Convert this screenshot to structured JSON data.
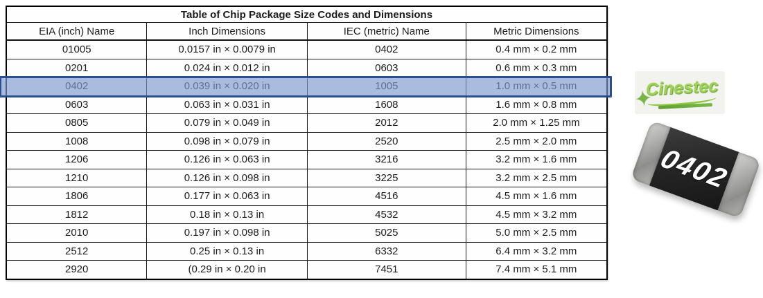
{
  "table": {
    "title": "Table of Chip Package Size Codes and Dimensions",
    "columns": [
      "EIA (inch) Name",
      "Inch Dimensions",
      "IEC (metric) Name",
      "Metric Dimensions"
    ],
    "rows": [
      [
        "01005",
        "0.0157 in × 0.0079 in",
        "0402",
        "0.4 mm × 0.2 mm"
      ],
      [
        "0201",
        "0.024 in × 0.012 in",
        "0603",
        "0.6 mm × 0.3 mm"
      ],
      [
        "0402",
        "0.039 in × 0.020 in",
        "1005",
        "1.0 mm × 0.5 mm"
      ],
      [
        "0603",
        "0.063 in × 0.031 in",
        "1608",
        "1.6 mm × 0.8 mm"
      ],
      [
        "0805",
        "0.079 in × 0.049 in",
        "2012",
        "2.0 mm × 1.25 mm"
      ],
      [
        "1008",
        "0.098 in × 0.079 in",
        "2520",
        "2.5 mm × 2.0 mm"
      ],
      [
        "1206",
        "0.126 in × 0.063 in",
        "3216",
        "3.2 mm × 1.6 mm"
      ],
      [
        "1210",
        "0.126 in × 0.098 in",
        "3225",
        "3.2 mm × 2.5 mm"
      ],
      [
        "1806",
        "0.177 in × 0.063 in",
        "4516",
        "4.5 mm × 1.6 mm"
      ],
      [
        "1812",
        "0.18 in × 0.13 in",
        "4532",
        "4.5 mm × 3.2 mm"
      ],
      [
        "2010",
        "0.197 in × 0.098 in",
        "5025",
        "5.0 mm × 2.5 mm"
      ],
      [
        "2512",
        "0.25 in × 0.13 in",
        "6332",
        "6.4 mm × 3.2 mm"
      ],
      [
        "2920",
        "(0.29 in × 0.20 in",
        "7451",
        "7.4 mm × 5.1 mm"
      ]
    ],
    "highlighted_row_index": 2,
    "highlight_fill": "#7c99d0",
    "highlight_border": "#2a4e8e"
  },
  "logo": {
    "brand": "Cinestec",
    "star_glyph": "✦",
    "green": "#8cc73f"
  },
  "chip": {
    "label": "0402",
    "body_color": "#262626",
    "cap_color": "#a9a9a7"
  },
  "chart_data": {
    "type": "table",
    "title": "Table of Chip Package Size Codes and Dimensions",
    "columns": [
      "EIA (inch) Name",
      "Inch Dimensions",
      "IEC (metric) Name",
      "Metric Dimensions"
    ],
    "rows": [
      [
        "01005",
        "0.0157 in × 0.0079 in",
        "0402",
        "0.4 mm × 0.2 mm"
      ],
      [
        "0201",
        "0.024 in × 0.012 in",
        "0603",
        "0.6 mm × 0.3 mm"
      ],
      [
        "0402",
        "0.039 in × 0.020 in",
        "1005",
        "1.0 mm × 0.5 mm"
      ],
      [
        "0603",
        "0.063 in × 0.031 in",
        "1608",
        "1.6 mm × 0.8 mm"
      ],
      [
        "0805",
        "0.079 in × 0.049 in",
        "2012",
        "2.0 mm × 1.25 mm"
      ],
      [
        "1008",
        "0.098 in × 0.079 in",
        "2520",
        "2.5 mm × 2.0 mm"
      ],
      [
        "1206",
        "0.126 in × 0.063 in",
        "3216",
        "3.2 mm × 1.6 mm"
      ],
      [
        "1210",
        "0.126 in × 0.098 in",
        "3225",
        "3.2 mm × 2.5 mm"
      ],
      [
        "1806",
        "0.177 in × 0.063 in",
        "4516",
        "4.5 mm × 1.6 mm"
      ],
      [
        "1812",
        "0.18 in × 0.13 in",
        "4532",
        "4.5 mm × 3.2 mm"
      ],
      [
        "2010",
        "0.197 in × 0.098 in",
        "5025",
        "5.0 mm × 2.5 mm"
      ],
      [
        "2512",
        "0.25 in × 0.13 in",
        "6332",
        "6.4 mm × 3.2 mm"
      ],
      [
        "2920",
        "(0.29 in × 0.20 in",
        "7451",
        "7.4 mm × 5.1 mm"
      ]
    ],
    "highlighted_row": [
      "0402",
      "0.039 in × 0.020 in",
      "1005",
      "1.0 mm × 0.5 mm"
    ]
  }
}
